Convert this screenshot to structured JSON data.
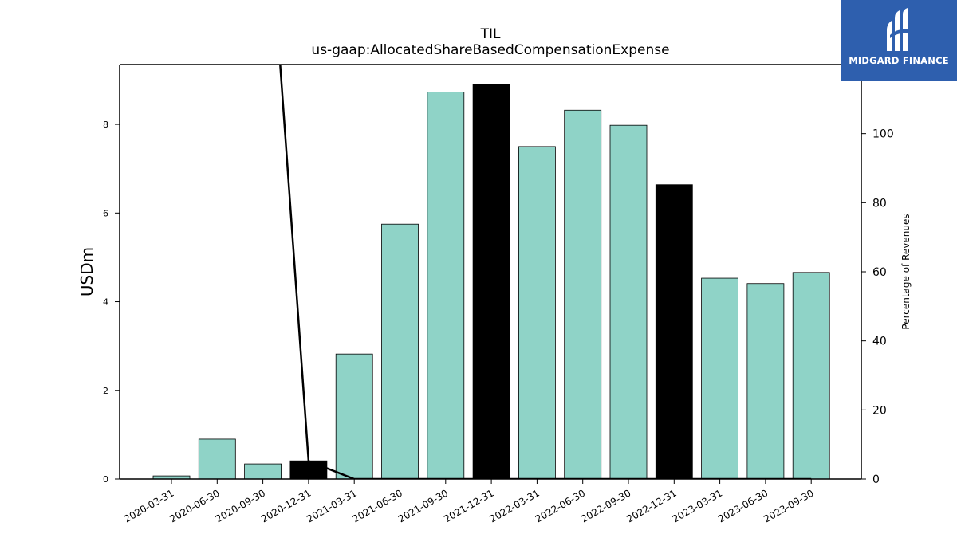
{
  "logo": {
    "text": "MIDGARD FINANCE"
  },
  "colors": {
    "bar_fill": "#8fd3c7",
    "bar_highlight": "#000000",
    "line": "#000000",
    "logo_bg": "#2e5fae"
  },
  "chart_data": {
    "type": "bar",
    "title": "TIL",
    "subtitle": "us-gaap:AllocatedShareBasedCompensationExpense",
    "ylabel": "USDm",
    "y2label": "Percentage of Revenues",
    "categories": [
      "2020-03-31",
      "2020-06-30",
      "2020-09-30",
      "2020-12-31",
      "2021-03-31",
      "2021-06-30",
      "2021-09-30",
      "2021-12-31",
      "2022-03-31",
      "2022-06-30",
      "2022-09-30",
      "2022-12-31",
      "2023-03-31",
      "2023-06-30",
      "2023-09-30"
    ],
    "values": [
      0.07,
      0.9,
      0.34,
      0.41,
      2.82,
      5.75,
      8.73,
      8.9,
      7.5,
      8.32,
      7.98,
      6.64,
      4.53,
      4.41,
      4.66
    ],
    "highlight": [
      false,
      false,
      false,
      true,
      false,
      false,
      false,
      true,
      false,
      false,
      false,
      true,
      false,
      false,
      false
    ],
    "ylim": [
      0,
      9.35
    ],
    "yticks": [
      0,
      2,
      4,
      6,
      8
    ],
    "y2lim": [
      0,
      120
    ],
    "y2ticks": [
      0,
      20,
      40,
      60,
      80,
      100
    ],
    "line_series": {
      "name": "Percentage of Revenues",
      "values": [
        null,
        null,
        190,
        5.2,
        0,
        0,
        0,
        0,
        0,
        0,
        0,
        0,
        0,
        0,
        0
      ]
    },
    "grid": false
  }
}
